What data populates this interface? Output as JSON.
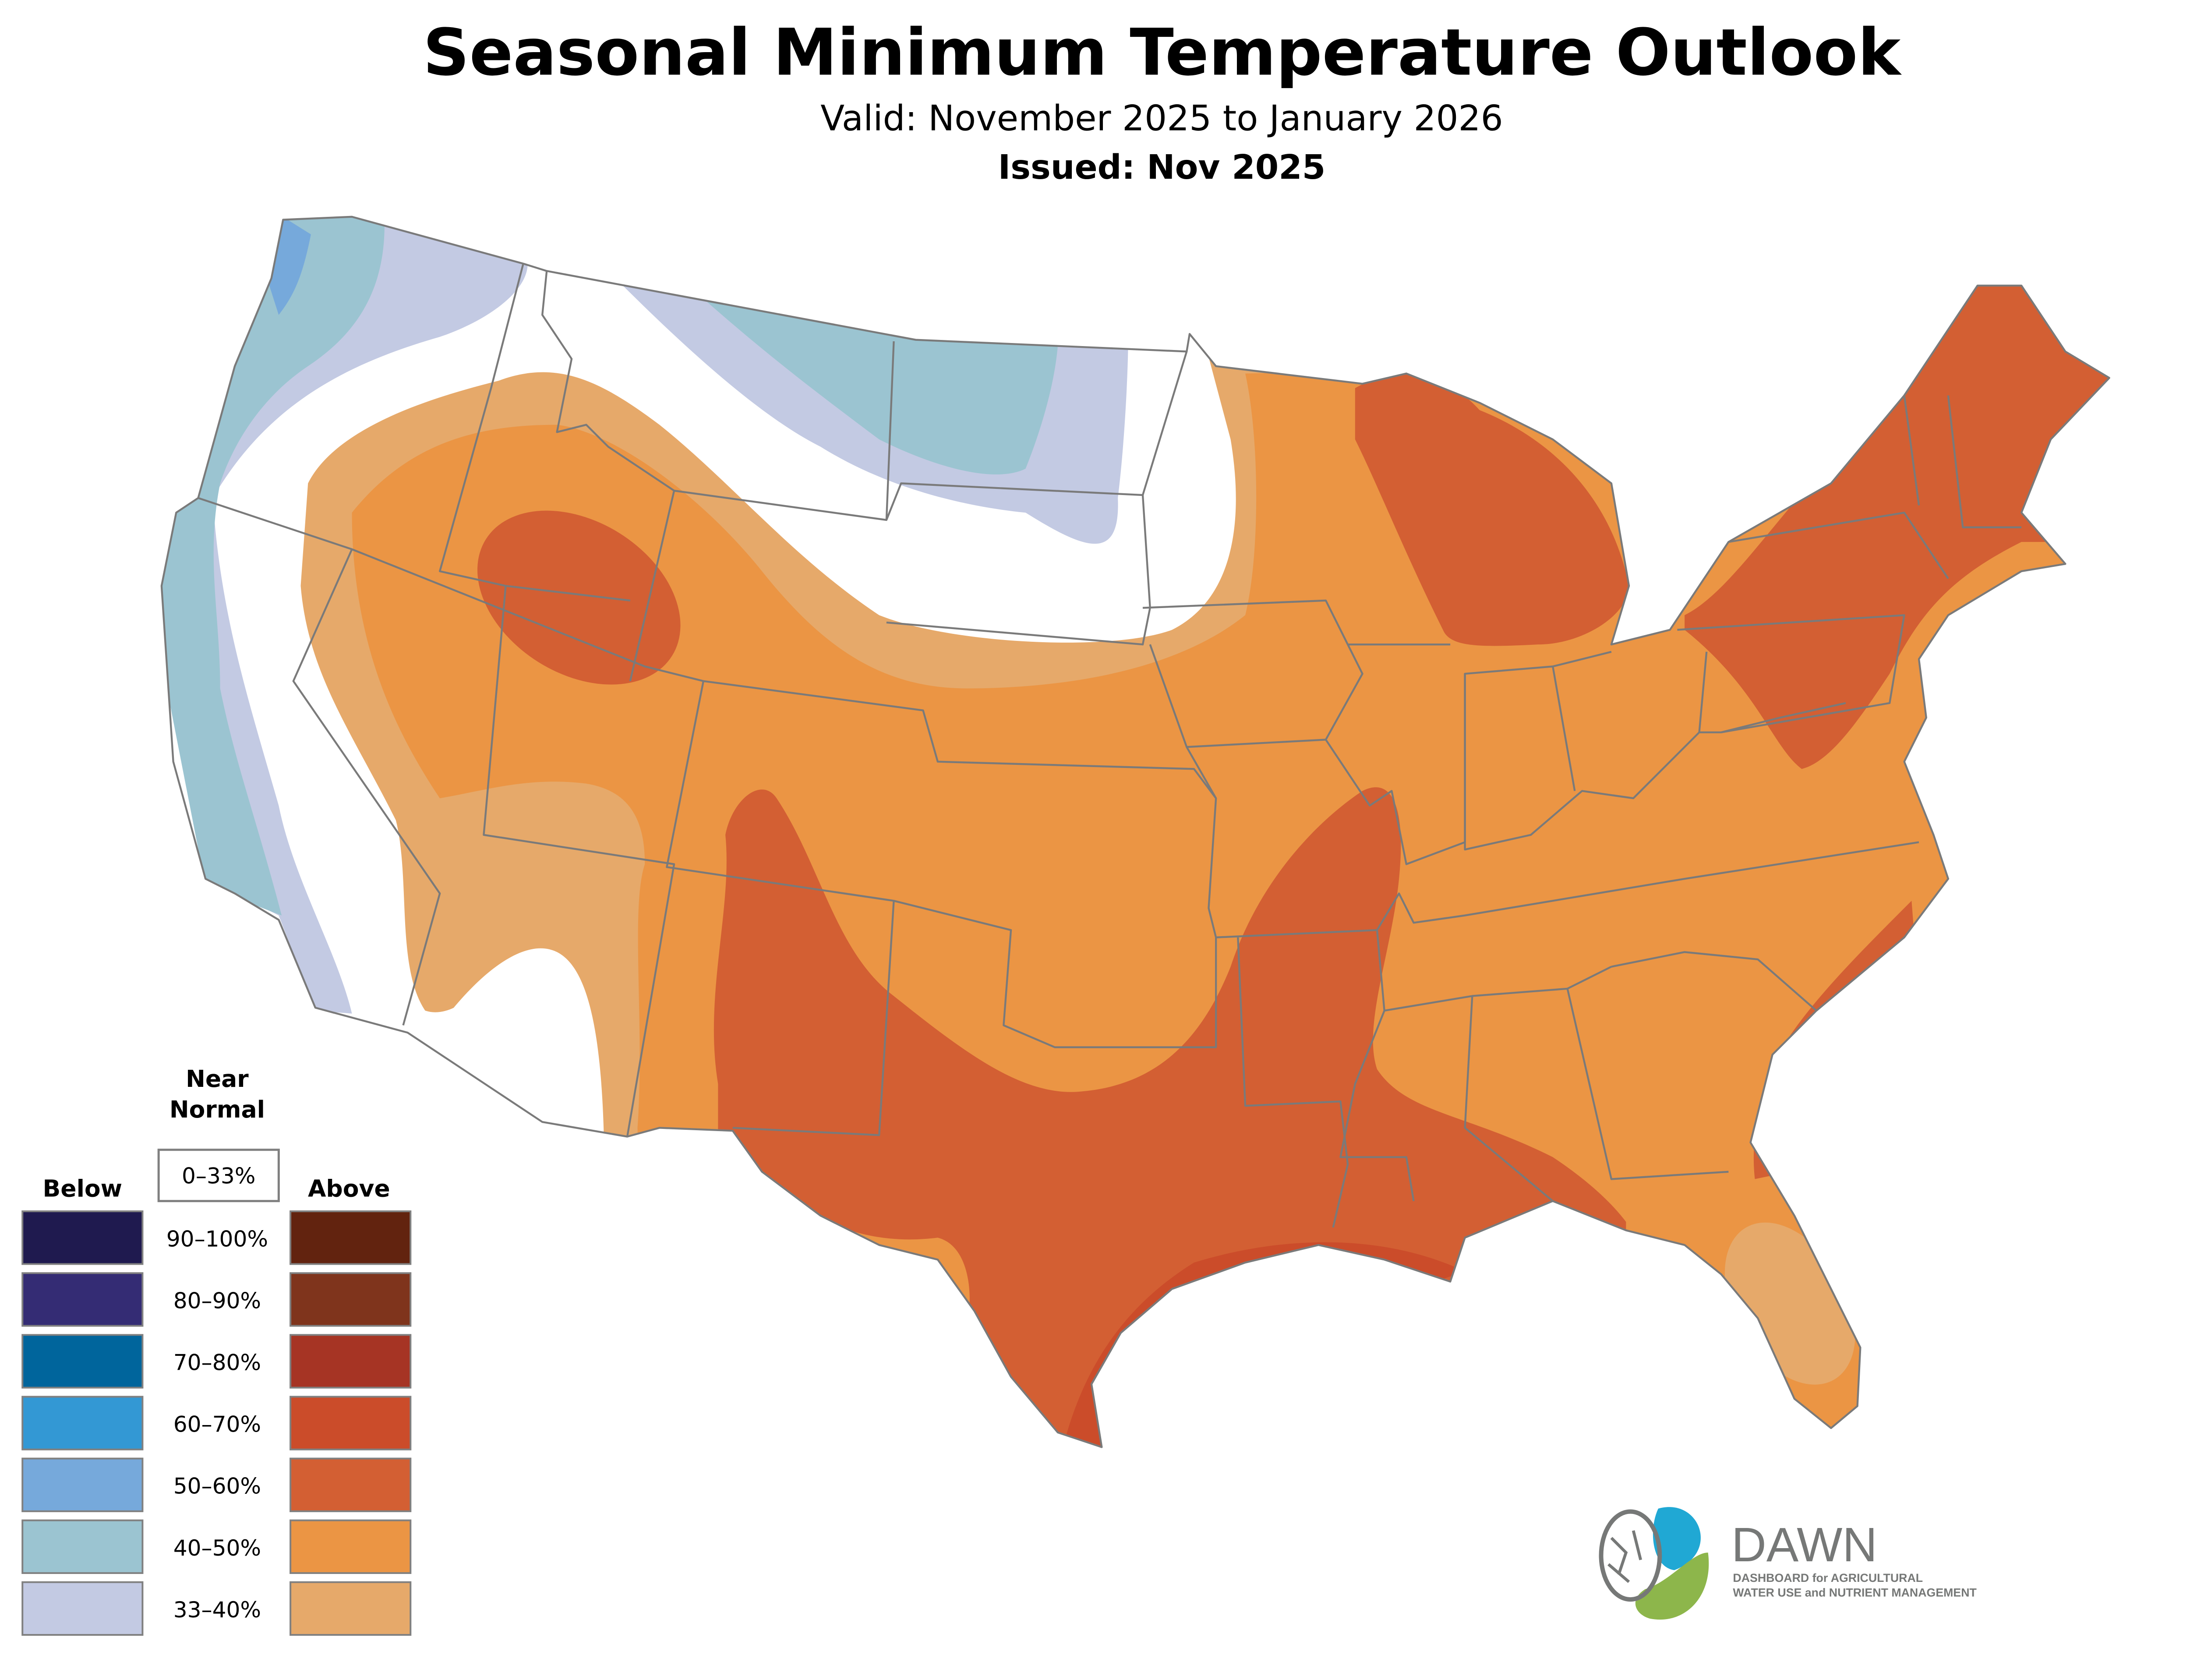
{
  "header": {
    "title": "Seasonal Minimum Temperature Outlook",
    "valid": "Valid: November 2025 to January 2026",
    "issued": "Issued: Nov 2025"
  },
  "legend": {
    "near_normal_line1": "Near",
    "near_normal_line2": "Normal",
    "near_normal_range": "0–33%",
    "below_label": "Below",
    "above_label": "Above",
    "rows": [
      {
        "range": "90–100%",
        "below_color": "#1F1A4F",
        "above_color": "#62230F"
      },
      {
        "range": "80–90%",
        "below_color": "#342C74",
        "above_color": "#7F341C"
      },
      {
        "range": "70–80%",
        "below_color": "#00659C",
        "above_color": "#A63424"
      },
      {
        "range": "60–70%",
        "below_color": "#3398D4",
        "above_color": "#CB4C2A"
      },
      {
        "range": "50–60%",
        "below_color": "#76A9DB",
        "above_color": "#D35F33"
      },
      {
        "range": "40–50%",
        "below_color": "#9BC4D1",
        "above_color": "#EB9544"
      },
      {
        "range": "33–40%",
        "below_color": "#C3CAE3",
        "above_color": "#E6A96A"
      }
    ]
  },
  "logo": {
    "name": "DAWN",
    "tagline_line1": "DASHBOARD for AGRICULTURAL",
    "tagline_line2": "WATER USE and NUTRIENT MANAGEMENT",
    "colors": {
      "blue": "#20A8D4",
      "green": "#8DB64B",
      "gray": "#767877"
    }
  }
}
